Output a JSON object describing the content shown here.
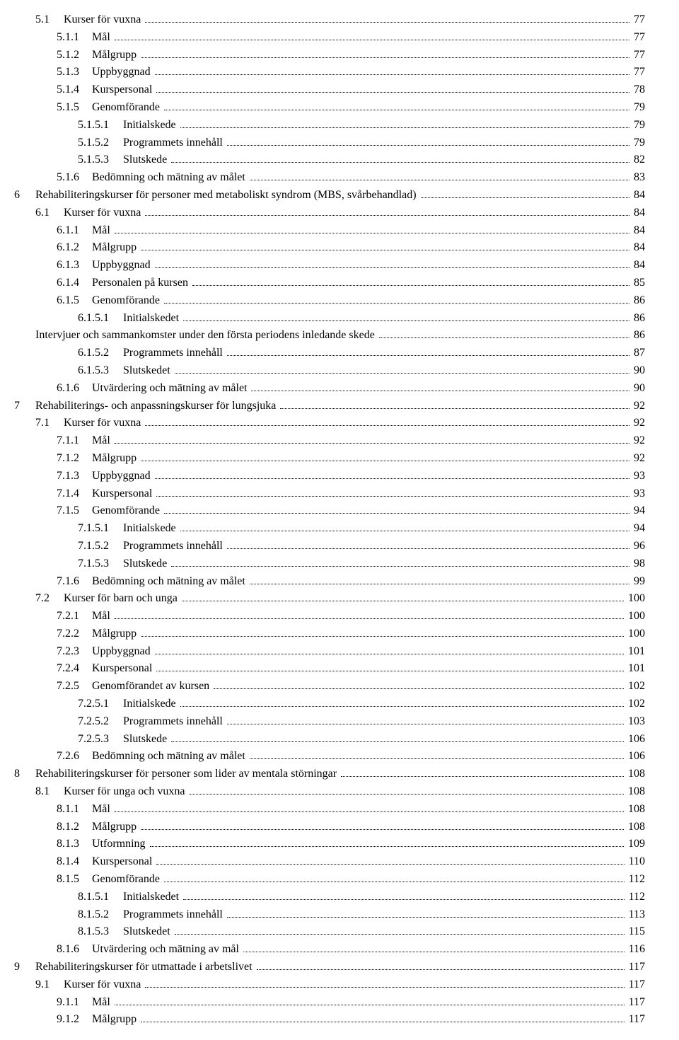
{
  "toc": [
    {
      "level": 1,
      "num": "5.1",
      "title": "Kurser för vuxna",
      "page": "77"
    },
    {
      "level": 2,
      "num": "5.1.1",
      "title": "Mål",
      "page": "77"
    },
    {
      "level": 2,
      "num": "5.1.2",
      "title": "Målgrupp",
      "page": "77"
    },
    {
      "level": 2,
      "num": "5.1.3",
      "title": "Uppbyggnad",
      "page": "77"
    },
    {
      "level": 2,
      "num": "5.1.4",
      "title": "Kurspersonal",
      "page": "78"
    },
    {
      "level": 2,
      "num": "5.1.5",
      "title": "Genomförande",
      "page": "79"
    },
    {
      "level": 3,
      "num": "5.1.5.1",
      "title": "Initialskede",
      "page": "79"
    },
    {
      "level": 3,
      "num": "5.1.5.2",
      "title": "Programmets innehåll",
      "page": "79"
    },
    {
      "level": 3,
      "num": "5.1.5.3",
      "title": "Slutskede",
      "page": "82"
    },
    {
      "level": 2,
      "num": "5.1.6",
      "title": "Bedömning och mätning av målet",
      "page": "83"
    },
    {
      "level": 0,
      "num": "6",
      "title": "Rehabiliteringskurser för personer med metaboliskt syndrom (MBS, svårbehandlad)",
      "page": "84"
    },
    {
      "level": 1,
      "num": "6.1",
      "title": "Kurser för vuxna",
      "page": "84"
    },
    {
      "level": 2,
      "num": "6.1.1",
      "title": "Mål",
      "page": "84"
    },
    {
      "level": 2,
      "num": "6.1.2",
      "title": "Målgrupp",
      "page": "84"
    },
    {
      "level": 2,
      "num": "6.1.3",
      "title": "Uppbyggnad",
      "page": "84"
    },
    {
      "level": 2,
      "num": "6.1.4",
      "title": "Personalen på kursen",
      "page": "85"
    },
    {
      "level": 2,
      "num": "6.1.5",
      "title": "Genomförande",
      "page": "86"
    },
    {
      "level": 3,
      "num": "6.1.5.1",
      "title": "Initialskedet",
      "page": "86"
    },
    {
      "level": 1,
      "num": "",
      "title": "Intervjuer och sammankomster under den första periodens inledande skede",
      "page": "86"
    },
    {
      "level": 3,
      "num": "6.1.5.2",
      "title": "Programmets innehåll",
      "page": "87"
    },
    {
      "level": 3,
      "num": "6.1.5.3",
      "title": "Slutskedet",
      "page": "90"
    },
    {
      "level": 2,
      "num": "6.1.6",
      "title": "Utvärdering och mätning av målet",
      "page": "90"
    },
    {
      "level": 0,
      "num": "7",
      "title": "Rehabiliterings- och anpassningskurser för lungsjuka",
      "page": "92"
    },
    {
      "level": 1,
      "num": "7.1",
      "title": "Kurser för vuxna",
      "page": "92"
    },
    {
      "level": 2,
      "num": "7.1.1",
      "title": "Mål",
      "page": "92"
    },
    {
      "level": 2,
      "num": "7.1.2",
      "title": "Målgrupp",
      "page": "92"
    },
    {
      "level": 2,
      "num": "7.1.3",
      "title": "Uppbyggnad",
      "page": "93"
    },
    {
      "level": 2,
      "num": "7.1.4",
      "title": "Kurspersonal",
      "page": "93"
    },
    {
      "level": 2,
      "num": "7.1.5",
      "title": "Genomförande",
      "page": "94"
    },
    {
      "level": 3,
      "num": "7.1.5.1",
      "title": "Initialskede",
      "page": "94"
    },
    {
      "level": 3,
      "num": "7.1.5.2",
      "title": "Programmets innehåll",
      "page": "96"
    },
    {
      "level": 3,
      "num": "7.1.5.3",
      "title": "Slutskede",
      "page": "98"
    },
    {
      "level": 2,
      "num": "7.1.6",
      "title": "Bedömning och mätning av målet",
      "page": "99"
    },
    {
      "level": 1,
      "num": "7.2",
      "title": "Kurser för barn och unga",
      "page": "100"
    },
    {
      "level": 2,
      "num": "7.2.1",
      "title": "Mål",
      "page": "100"
    },
    {
      "level": 2,
      "num": "7.2.2",
      "title": "Målgrupp",
      "page": "100"
    },
    {
      "level": 2,
      "num": "7.2.3",
      "title": "Uppbyggnad",
      "page": "101"
    },
    {
      "level": 2,
      "num": "7.2.4",
      "title": "Kurspersonal",
      "page": "101"
    },
    {
      "level": 2,
      "num": "7.2.5",
      "title": "Genomförandet av kursen",
      "page": "102"
    },
    {
      "level": 3,
      "num": "7.2.5.1",
      "title": "Initialskede",
      "page": "102"
    },
    {
      "level": 3,
      "num": "7.2.5.2",
      "title": "Programmets innehåll",
      "page": "103"
    },
    {
      "level": 3,
      "num": "7.2.5.3",
      "title": "Slutskede",
      "page": "106"
    },
    {
      "level": 2,
      "num": "7.2.6",
      "title": "Bedömning och mätning av målet",
      "page": "106"
    },
    {
      "level": 0,
      "num": "8",
      "title": "Rehabiliteringskurser för personer som lider av mentala störningar",
      "page": "108"
    },
    {
      "level": 1,
      "num": "8.1",
      "title": "Kurser för unga och vuxna",
      "page": "108"
    },
    {
      "level": 2,
      "num": "8.1.1",
      "title": "Mål",
      "page": "108"
    },
    {
      "level": 2,
      "num": "8.1.2",
      "title": "Målgrupp",
      "page": "108"
    },
    {
      "level": 2,
      "num": "8.1.3",
      "title": "Utformning",
      "page": "109"
    },
    {
      "level": 2,
      "num": "8.1.4",
      "title": "Kurspersonal",
      "page": "110"
    },
    {
      "level": 2,
      "num": "8.1.5",
      "title": "Genomförande",
      "page": "112"
    },
    {
      "level": 3,
      "num": "8.1.5.1",
      "title": "Initialskedet",
      "page": "112"
    },
    {
      "level": 3,
      "num": "8.1.5.2",
      "title": "Programmets innehåll",
      "page": "113"
    },
    {
      "level": 3,
      "num": "8.1.5.3",
      "title": "Slutskedet",
      "page": "115"
    },
    {
      "level": 2,
      "num": "8.1.6",
      "title": "Utvärdering och mätning av mål",
      "page": "116"
    },
    {
      "level": 0,
      "num": "9",
      "title": "Rehabiliteringskurser för utmattade i arbetslivet",
      "page": "117"
    },
    {
      "level": 1,
      "num": "9.1",
      "title": "Kurser för vuxna",
      "page": "117"
    },
    {
      "level": 2,
      "num": "9.1.1",
      "title": "Mål",
      "page": "117"
    },
    {
      "level": 2,
      "num": "9.1.2",
      "title": "Målgrupp",
      "page": "117"
    }
  ],
  "num_widths": {
    "0": 30,
    "1": 40,
    "2": 50,
    "3": 64
  }
}
